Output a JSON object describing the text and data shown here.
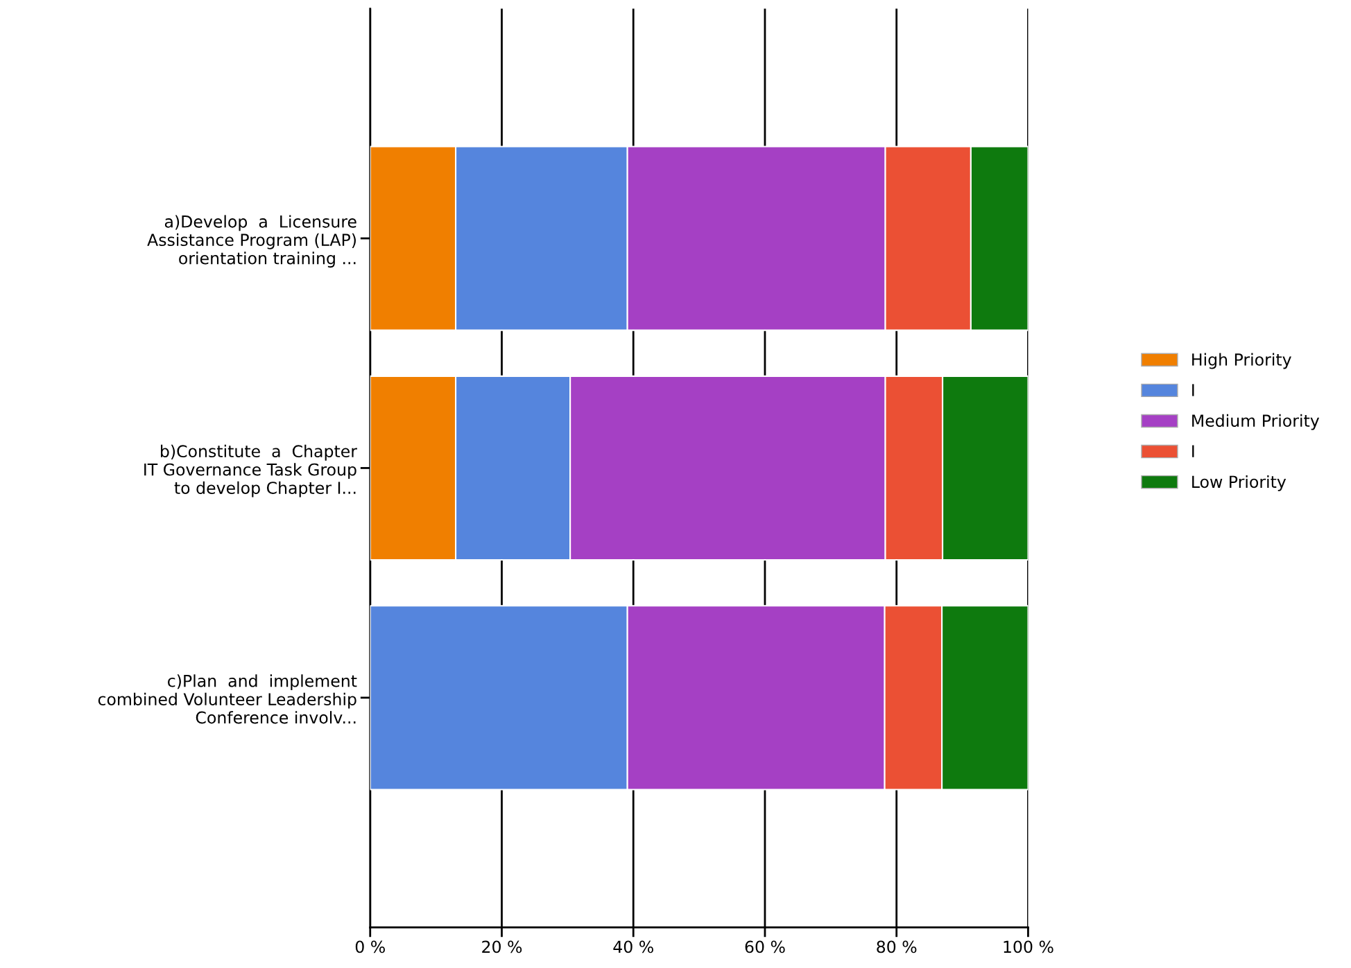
{
  "chart_data": {
    "type": "bar",
    "orientation": "horizontal",
    "stacked": true,
    "categories": [
      "a)Develop  a  Licensure\nAssistance Program (LAP)\norientation training ...",
      "b)Constitute  a  Chapter\nIT Governance Task Group\nto develop Chapter I...",
      "c)Plan  and  implement\ncombined Volunteer Leadership\nConference involv..."
    ],
    "series": [
      {
        "name": "High Priority",
        "color": "#f07f00",
        "values": [
          13.0,
          13.0,
          0
        ]
      },
      {
        "name": "I",
        "color": "#5585dd",
        "values": [
          26.1,
          17.4,
          39.1
        ]
      },
      {
        "name": "Medium Priority",
        "color": "#a540c4",
        "values": [
          39.2,
          47.9,
          39.1
        ]
      },
      {
        "name": "I",
        "color": "#eb5034",
        "values": [
          13.0,
          8.7,
          8.7
        ]
      },
      {
        "name": "Low Priority",
        "color": "#0e7a0e",
        "values": [
          8.7,
          13.0,
          13.1
        ]
      }
    ],
    "xlim": [
      0,
      100
    ],
    "xticks": [
      {
        "value": 0,
        "label": "0 %"
      },
      {
        "value": 20,
        "label": "20 %"
      },
      {
        "value": 40,
        "label": "40 %"
      },
      {
        "value": 60,
        "label": "60 %"
      },
      {
        "value": 80,
        "label": "80 %"
      },
      {
        "value": 100,
        "label": "100 %"
      }
    ],
    "grid": "x",
    "legend": "right"
  }
}
